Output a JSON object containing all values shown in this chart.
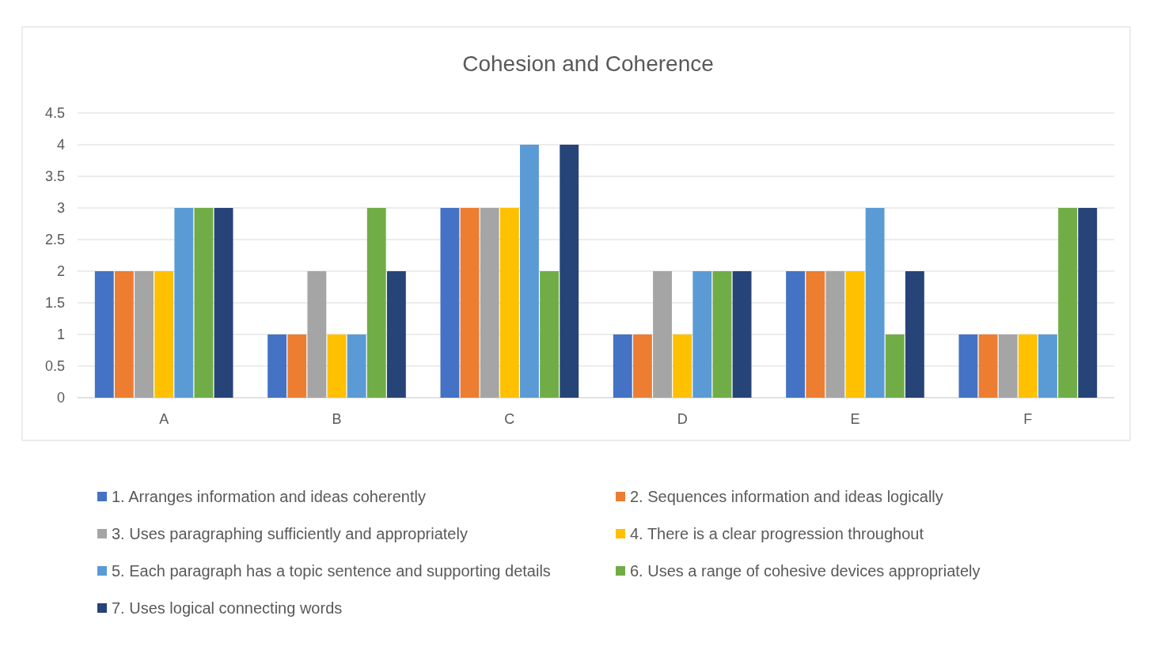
{
  "chart_data": {
    "type": "bar",
    "title": "Cohesion and Coherence",
    "categories": [
      "A",
      "B",
      "C",
      "D",
      "E",
      "F"
    ],
    "series": [
      {
        "name": "1. Arranges information and ideas coherently",
        "color": "#4472c4",
        "values": [
          2,
          1,
          3,
          1,
          2,
          1
        ]
      },
      {
        "name": "2. Sequences information and ideas logically",
        "color": "#ed7d31",
        "values": [
          2,
          1,
          3,
          1,
          2,
          1
        ]
      },
      {
        "name": "3. Uses paragraphing sufficiently and appropriately",
        "color": "#a5a5a5",
        "values": [
          2,
          2,
          3,
          2,
          2,
          1
        ]
      },
      {
        "name": "4. There is a clear progression throughout",
        "color": "#ffc000",
        "values": [
          2,
          1,
          3,
          1,
          2,
          1
        ]
      },
      {
        "name": "5. Each paragraph has a topic sentence and supporting details",
        "color": "#5b9bd5",
        "values": [
          3,
          1,
          4,
          2,
          3,
          1
        ]
      },
      {
        "name": "6. Uses a range of cohesive devices appropriately",
        "color": "#70ad47",
        "values": [
          3,
          3,
          2,
          2,
          1,
          3
        ]
      },
      {
        "name": "7. Uses logical connecting words",
        "color": "#264478",
        "values": [
          3,
          2,
          4,
          2,
          2,
          3
        ]
      }
    ],
    "ylim": [
      0,
      4.5
    ],
    "yticks": [
      0,
      0.5,
      1,
      1.5,
      2,
      2.5,
      3,
      3.5,
      4,
      4.5
    ],
    "grid": "y",
    "legend": "bottom"
  }
}
